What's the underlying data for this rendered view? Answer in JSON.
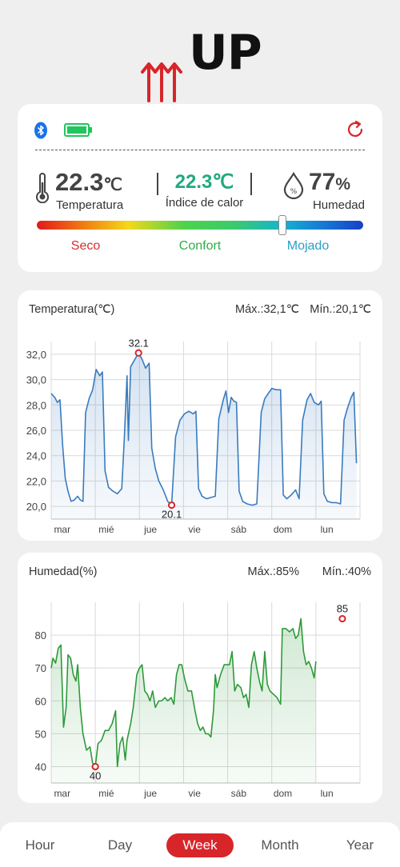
{
  "app": {
    "logo_text": "UP"
  },
  "status": {
    "temperature": {
      "value": "22.3",
      "unit": "℃",
      "label": "Temperatura"
    },
    "heat_index": {
      "value": "22.3℃",
      "label": "Índice de calor"
    },
    "humidity": {
      "value": "77",
      "unit": "%",
      "label": "Humedad"
    },
    "comfort_scale": {
      "dry": "Seco",
      "comfort": "Confort",
      "wet": "Mojado",
      "level": 0.75
    },
    "colors": {
      "bluetooth": "#1a73e8",
      "battery": "#22c55e",
      "refresh": "#d8252a",
      "heat_index": "#1faa7e"
    }
  },
  "chart_data": [
    {
      "type": "area",
      "title": "Temperatura(℃)",
      "max_label": "Máx.:32,1℃",
      "min_label": "Mín.:20,1℃",
      "x_tick_labels": [
        "mar",
        "mié",
        "jue",
        "vie",
        "sáb",
        "dom",
        "lun"
      ],
      "y_tick_labels": [
        "32,0",
        "30,0",
        "28,0",
        "26,0",
        "24,0",
        "22,0",
        "20,0"
      ],
      "ylim": [
        19,
        33
      ],
      "xlim": [
        0,
        7
      ],
      "annotations": [
        {
          "x": 1.98,
          "y": 32.1,
          "label": "32.1"
        },
        {
          "x": 2.73,
          "y": 20.1,
          "label": "20.1"
        }
      ],
      "color": "#3a7bbf",
      "points": [
        [
          0,
          28.9
        ],
        [
          0.08,
          28.6
        ],
        [
          0.14,
          28.2
        ],
        [
          0.2,
          28.4
        ],
        [
          0.26,
          24.8
        ],
        [
          0.32,
          22.2
        ],
        [
          0.38,
          21.2
        ],
        [
          0.45,
          20.4
        ],
        [
          0.52,
          20.5
        ],
        [
          0.6,
          20.8
        ],
        [
          0.66,
          20.5
        ],
        [
          0.72,
          20.4
        ],
        [
          0.78,
          27.4
        ],
        [
          0.86,
          28.5
        ],
        [
          0.94,
          29.2
        ],
        [
          1.02,
          30.8
        ],
        [
          1.1,
          30.3
        ],
        [
          1.16,
          30.6
        ],
        [
          1.22,
          22.8
        ],
        [
          1.3,
          21.5
        ],
        [
          1.4,
          21.2
        ],
        [
          1.5,
          21.0
        ],
        [
          1.6,
          21.4
        ],
        [
          1.66,
          25.5
        ],
        [
          1.72,
          30.3
        ],
        [
          1.75,
          25.2
        ],
        [
          1.8,
          31.0
        ],
        [
          1.88,
          31.5
        ],
        [
          1.98,
          32.1
        ],
        [
          2.06,
          31.6
        ],
        [
          2.14,
          30.9
        ],
        [
          2.22,
          31.3
        ],
        [
          2.28,
          24.6
        ],
        [
          2.36,
          23.0
        ],
        [
          2.44,
          22.0
        ],
        [
          2.54,
          21.3
        ],
        [
          2.64,
          20.4
        ],
        [
          2.73,
          20.1
        ],
        [
          2.82,
          25.5
        ],
        [
          2.92,
          26.8
        ],
        [
          3.02,
          27.3
        ],
        [
          3.12,
          27.5
        ],
        [
          3.22,
          27.3
        ],
        [
          3.28,
          27.5
        ],
        [
          3.34,
          21.4
        ],
        [
          3.42,
          20.8
        ],
        [
          3.52,
          20.6
        ],
        [
          3.62,
          20.7
        ],
        [
          3.72,
          20.8
        ],
        [
          3.8,
          26.9
        ],
        [
          3.9,
          28.4
        ],
        [
          3.96,
          29.1
        ],
        [
          4.02,
          27.4
        ],
        [
          4.08,
          28.6
        ],
        [
          4.14,
          28.3
        ],
        [
          4.2,
          28.2
        ],
        [
          4.26,
          21.2
        ],
        [
          4.34,
          20.4
        ],
        [
          4.44,
          20.2
        ],
        [
          4.56,
          20.1
        ],
        [
          4.66,
          20.2
        ],
        [
          4.76,
          27.4
        ],
        [
          4.84,
          28.5
        ],
        [
          4.92,
          28.9
        ],
        [
          5.0,
          29.3
        ],
        [
          5.1,
          29.2
        ],
        [
          5.2,
          29.2
        ],
        [
          5.26,
          20.9
        ],
        [
          5.34,
          20.6
        ],
        [
          5.44,
          20.9
        ],
        [
          5.54,
          21.3
        ],
        [
          5.62,
          20.6
        ],
        [
          5.7,
          26.8
        ],
        [
          5.8,
          28.4
        ],
        [
          5.88,
          28.9
        ],
        [
          5.96,
          28.2
        ],
        [
          6.06,
          28.0
        ],
        [
          6.12,
          28.3
        ],
        [
          6.18,
          21.0
        ],
        [
          6.26,
          20.4
        ],
        [
          6.36,
          20.3
        ],
        [
          6.46,
          20.3
        ],
        [
          6.56,
          20.2
        ],
        [
          6.64,
          26.8
        ],
        [
          6.72,
          27.8
        ],
        [
          6.8,
          28.6
        ],
        [
          6.86,
          29.0
        ],
        [
          6.92,
          23.4
        ]
      ]
    },
    {
      "type": "area",
      "title": "Humedad(%)",
      "max_label": "Máx.:85%",
      "min_label": "Mín.:40%",
      "x_tick_labels": [
        "mar",
        "mié",
        "jue",
        "vie",
        "sáb",
        "dom",
        "lun"
      ],
      "y_tick_labels": [
        "80",
        "70",
        "60",
        "50",
        "40"
      ],
      "ylim": [
        35,
        90
      ],
      "xlim": [
        0,
        7
      ],
      "annotations": [
        {
          "x": 1.0,
          "y": 40,
          "label": "40"
        },
        {
          "x": 6.6,
          "y": 85,
          "label": "85"
        }
      ],
      "color": "#2e9a3a",
      "points": [
        [
          0,
          70
        ],
        [
          0.04,
          73
        ],
        [
          0.1,
          71.5
        ],
        [
          0.16,
          76
        ],
        [
          0.22,
          77
        ],
        [
          0.28,
          52
        ],
        [
          0.34,
          58
        ],
        [
          0.38,
          74
        ],
        [
          0.44,
          73
        ],
        [
          0.5,
          68
        ],
        [
          0.56,
          66
        ],
        [
          0.6,
          71
        ],
        [
          0.66,
          58
        ],
        [
          0.72,
          50
        ],
        [
          0.8,
          45
        ],
        [
          0.88,
          46
        ],
        [
          0.94,
          41
        ],
        [
          1.0,
          40
        ],
        [
          1.06,
          47
        ],
        [
          1.14,
          48
        ],
        [
          1.22,
          51
        ],
        [
          1.3,
          51
        ],
        [
          1.38,
          53
        ],
        [
          1.46,
          57
        ],
        [
          1.5,
          40
        ],
        [
          1.56,
          47
        ],
        [
          1.62,
          49
        ],
        [
          1.68,
          42
        ],
        [
          1.72,
          48
        ],
        [
          1.8,
          53
        ],
        [
          1.86,
          58
        ],
        [
          1.94,
          68
        ],
        [
          2.0,
          70
        ],
        [
          2.06,
          71
        ],
        [
          2.12,
          63
        ],
        [
          2.18,
          62
        ],
        [
          2.24,
          60
        ],
        [
          2.3,
          63
        ],
        [
          2.36,
          58
        ],
        [
          2.44,
          60
        ],
        [
          2.5,
          60
        ],
        [
          2.58,
          61
        ],
        [
          2.64,
          60
        ],
        [
          2.72,
          61
        ],
        [
          2.78,
          59
        ],
        [
          2.84,
          68
        ],
        [
          2.9,
          71
        ],
        [
          2.96,
          71
        ],
        [
          3.02,
          67
        ],
        [
          3.1,
          63
        ],
        [
          3.18,
          63
        ],
        [
          3.26,
          57
        ],
        [
          3.32,
          53
        ],
        [
          3.38,
          51
        ],
        [
          3.44,
          52
        ],
        [
          3.5,
          50
        ],
        [
          3.56,
          50
        ],
        [
          3.62,
          49
        ],
        [
          3.68,
          57
        ],
        [
          3.72,
          68
        ],
        [
          3.76,
          64
        ],
        [
          3.84,
          68
        ],
        [
          3.92,
          71
        ],
        [
          3.98,
          71
        ],
        [
          4.04,
          71
        ],
        [
          4.1,
          75
        ],
        [
          4.16,
          63
        ],
        [
          4.22,
          65
        ],
        [
          4.3,
          64
        ],
        [
          4.36,
          61
        ],
        [
          4.42,
          62
        ],
        [
          4.48,
          58
        ],
        [
          4.54,
          71
        ],
        [
          4.6,
          75
        ],
        [
          4.66,
          70
        ],
        [
          4.72,
          66
        ],
        [
          4.78,
          63
        ],
        [
          4.84,
          75
        ],
        [
          4.9,
          65
        ],
        [
          4.96,
          63
        ],
        [
          5.04,
          62
        ],
        [
          5.12,
          61
        ],
        [
          5.2,
          59
        ],
        [
          5.24,
          82
        ],
        [
          5.32,
          82
        ],
        [
          5.4,
          81
        ],
        [
          5.48,
          82
        ],
        [
          5.54,
          79
        ],
        [
          5.6,
          80
        ],
        [
          5.66,
          85
        ],
        [
          5.72,
          75
        ],
        [
          5.78,
          71
        ],
        [
          5.84,
          72
        ],
        [
          5.9,
          70
        ],
        [
          5.96,
          67
        ],
        [
          6.0,
          72
        ]
      ]
    }
  ],
  "tabs": [
    {
      "label": "Hour",
      "active": false
    },
    {
      "label": "Day",
      "active": false
    },
    {
      "label": "Week",
      "active": true
    },
    {
      "label": "Month",
      "active": false
    },
    {
      "label": "Year",
      "active": false
    }
  ]
}
